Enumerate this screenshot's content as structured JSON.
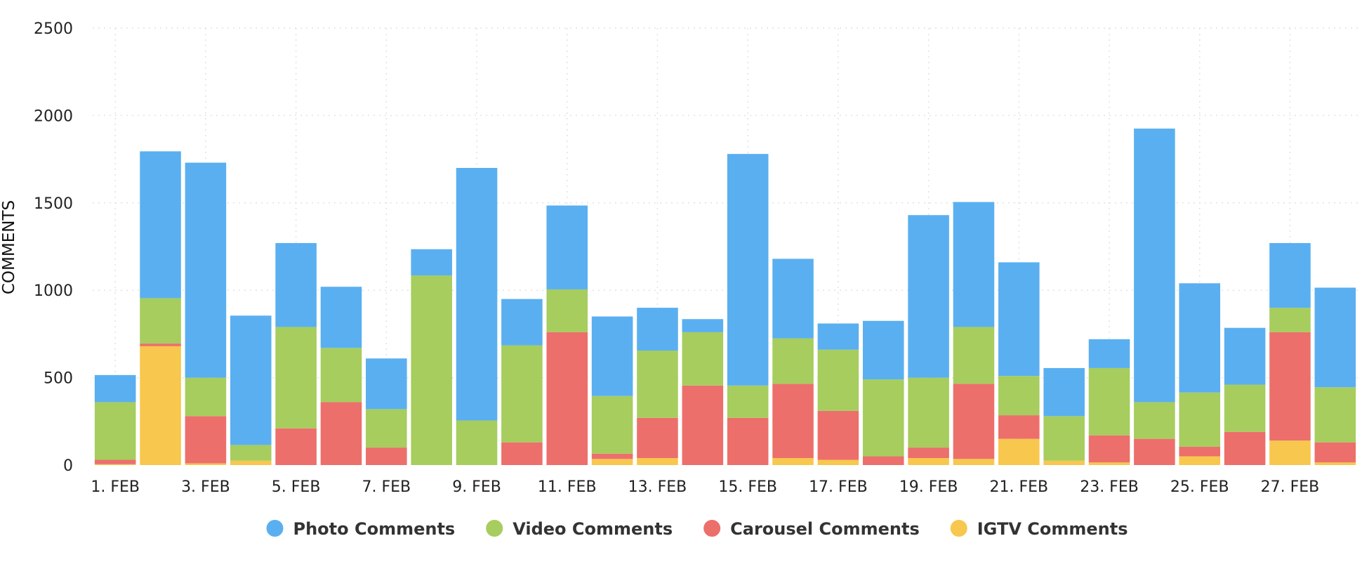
{
  "chart_data": {
    "type": "bar",
    "stacked": true,
    "title": "",
    "xlabel": "",
    "ylabel": "COMMENTS",
    "ylim": [
      0,
      2500
    ],
    "yticks": [
      0,
      500,
      1000,
      1500,
      2000,
      2500
    ],
    "grid": true,
    "legend_position": "bottom-center",
    "categories": [
      "1. FEB",
      "2. FEB",
      "3. FEB",
      "4. FEB",
      "5. FEB",
      "6. FEB",
      "7. FEB",
      "8. FEB",
      "9. FEB",
      "10. FEB",
      "11. FEB",
      "12. FEB",
      "13. FEB",
      "14. FEB",
      "15. FEB",
      "16. FEB",
      "17. FEB",
      "18. FEB",
      "19. FEB",
      "20. FEB",
      "21. FEB",
      "22. FEB",
      "23. FEB",
      "24. FEB",
      "25. FEB",
      "26. FEB",
      "27. FEB",
      "28. FEB"
    ],
    "x_tick_labels": [
      "1. FEB",
      "3. FEB",
      "5. FEB",
      "7. FEB",
      "9. FEB",
      "11. FEB",
      "13. FEB",
      "15. FEB",
      "17. FEB",
      "19. FEB",
      "21. FEB",
      "23. FEB",
      "25. FEB",
      "27. FEB"
    ],
    "series": [
      {
        "name": "IGTV Comments",
        "color": "#F7C74E",
        "values": [
          5,
          680,
          10,
          25,
          0,
          0,
          0,
          0,
          0,
          0,
          0,
          35,
          40,
          0,
          0,
          40,
          30,
          0,
          40,
          35,
          150,
          25,
          15,
          0,
          50,
          0,
          140,
          15
        ]
      },
      {
        "name": "Carousel Comments",
        "color": "#EC6F6B",
        "values": [
          25,
          15,
          270,
          0,
          210,
          360,
          100,
          0,
          0,
          130,
          760,
          30,
          230,
          455,
          270,
          425,
          280,
          50,
          60,
          430,
          135,
          0,
          155,
          150,
          55,
          190,
          620,
          115
        ]
      },
      {
        "name": "Video Comments",
        "color": "#A6CD5E",
        "values": [
          330,
          260,
          220,
          90,
          580,
          310,
          220,
          1085,
          255,
          555,
          245,
          330,
          385,
          305,
          185,
          260,
          350,
          440,
          400,
          325,
          225,
          255,
          385,
          210,
          310,
          270,
          140,
          315
        ]
      },
      {
        "name": "Photo Comments",
        "color": "#5AAFF0",
        "values": [
          155,
          840,
          1230,
          740,
          480,
          350,
          290,
          150,
          1445,
          265,
          480,
          455,
          245,
          75,
          1325,
          455,
          150,
          335,
          930,
          715,
          650,
          275,
          165,
          1565,
          625,
          325,
          370,
          570
        ]
      }
    ],
    "legend": [
      {
        "name": "Photo Comments",
        "color": "#5AAFF0"
      },
      {
        "name": "Video Comments",
        "color": "#A6CD5E"
      },
      {
        "name": "Carousel Comments",
        "color": "#EC6F6B"
      },
      {
        "name": "IGTV Comments",
        "color": "#F7C74E"
      }
    ]
  }
}
